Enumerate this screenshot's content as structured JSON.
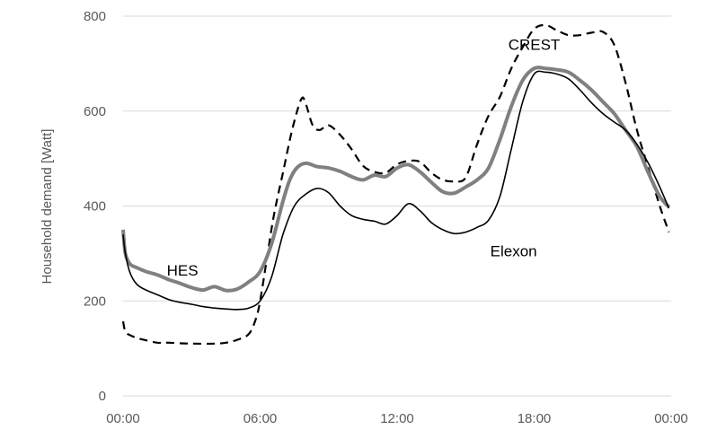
{
  "chart_data": {
    "type": "line",
    "title": "",
    "xlabel": "",
    "ylabel": "Household demand [Watt]",
    "ylim": [
      0,
      800
    ],
    "xlim": [
      0,
      24
    ],
    "grid": "horizontal",
    "legend": "none (series labelled directly on the plot)",
    "x_ticks": [
      "00:00",
      "06:00",
      "12:00",
      "18:00",
      "00:00"
    ],
    "y_ticks": [
      "0",
      "200",
      "400",
      "600",
      "800"
    ],
    "series": [
      {
        "name": "CREST",
        "style": "dashed",
        "color": "#000000",
        "x": [
          0,
          0.1,
          0.3,
          0.6,
          1,
          1.5,
          2,
          3,
          4,
          4.5,
          5,
          5.5,
          5.8,
          6,
          6.3,
          6.6,
          7,
          7.4,
          7.8,
          8,
          8.3,
          8.6,
          9,
          9.5,
          10,
          10.5,
          11,
          11.5,
          12,
          12.5,
          13,
          13.5,
          14,
          14.5,
          15,
          15.5,
          16,
          16.5,
          17,
          17.5,
          18,
          18.5,
          19,
          19.5,
          20,
          20.5,
          21,
          21.5,
          22,
          22.5,
          23,
          23.5,
          23.9
        ],
        "y": [
          157,
          135,
          128,
          122,
          117,
          112,
          112,
          110,
          110,
          112,
          118,
          130,
          160,
          200,
          290,
          380,
          470,
          560,
          625,
          615,
          570,
          560,
          570,
          550,
          520,
          485,
          472,
          470,
          488,
          495,
          493,
          470,
          455,
          452,
          460,
          530,
          590,
          630,
          690,
          735,
          773,
          781,
          770,
          760,
          760,
          765,
          767,
          740,
          660,
          560,
          480,
          400,
          345
        ]
      },
      {
        "name": "HES",
        "style": "solid thick",
        "color": "#808080",
        "x": [
          0,
          0.1,
          0.3,
          0.6,
          1,
          1.5,
          2,
          2.5,
          3,
          3.5,
          4,
          4.5,
          5,
          5.5,
          6,
          6.5,
          7,
          7.3,
          7.6,
          8,
          8.5,
          9,
          9.5,
          10,
          10.5,
          11,
          11.5,
          12,
          12.5,
          13,
          13.5,
          14,
          14.5,
          15,
          15.5,
          16,
          16.5,
          17,
          17.5,
          18,
          18.5,
          19,
          19.5,
          20,
          20.5,
          21,
          21.5,
          22,
          22.5,
          23,
          23.5,
          23.9
        ],
        "y": [
          350,
          300,
          278,
          270,
          262,
          255,
          245,
          237,
          228,
          223,
          230,
          222,
          225,
          240,
          262,
          320,
          410,
          455,
          480,
          490,
          483,
          480,
          473,
          462,
          455,
          465,
          462,
          480,
          487,
          472,
          450,
          430,
          427,
          440,
          455,
          480,
          540,
          610,
          665,
          690,
          690,
          687,
          682,
          665,
          645,
          620,
          595,
          560,
          525,
          470,
          420,
          398
        ]
      },
      {
        "name": "Elexon",
        "style": "solid thin",
        "color": "#000000",
        "x": [
          0,
          0.1,
          0.3,
          0.6,
          1,
          1.5,
          2,
          2.5,
          3,
          3.5,
          4,
          4.5,
          5,
          5.5,
          6,
          6.5,
          7,
          7.5,
          8,
          8.5,
          9,
          9.5,
          10,
          10.5,
          11,
          11.5,
          12,
          12.5,
          13,
          13.5,
          14,
          14.5,
          15,
          15.5,
          16,
          16.5,
          17,
          17.5,
          18,
          18.5,
          19,
          19.5,
          20,
          20.5,
          21,
          21.5,
          22,
          22.5,
          23,
          23.5,
          23.9
        ],
        "y": [
          340,
          300,
          260,
          235,
          223,
          213,
          203,
          197,
          193,
          188,
          185,
          183,
          182,
          185,
          200,
          250,
          340,
          400,
          425,
          437,
          428,
          400,
          380,
          372,
          368,
          362,
          380,
          405,
          390,
          365,
          350,
          342,
          345,
          355,
          370,
          420,
          520,
          620,
          678,
          682,
          678,
          668,
          645,
          618,
          595,
          577,
          560,
          530,
          490,
          440,
          395
        ]
      }
    ],
    "annotations": [
      {
        "text": "CREST",
        "x": 18.0,
        "y": 740
      },
      {
        "text": "HES",
        "x": 2.6,
        "y": 265
      },
      {
        "text": "Elexon",
        "x": 17.1,
        "y": 305
      }
    ]
  }
}
